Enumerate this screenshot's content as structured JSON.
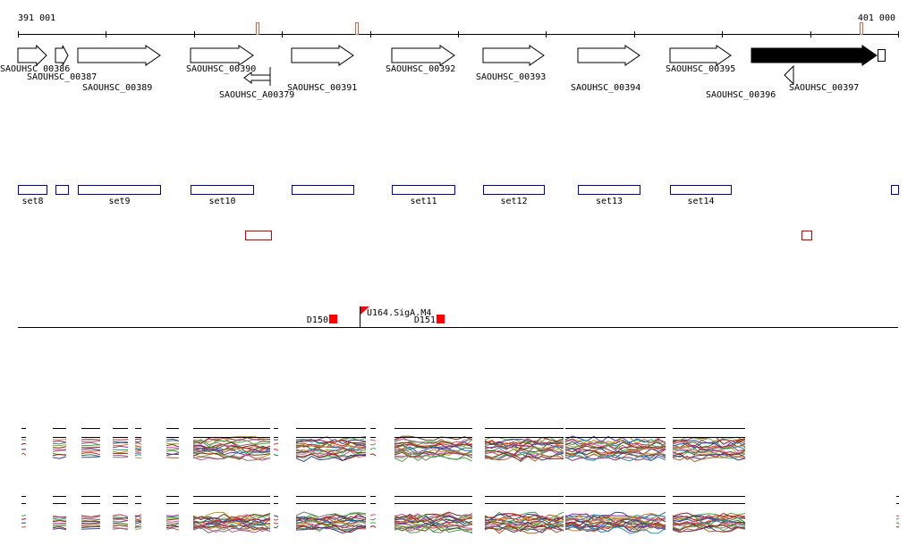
{
  "ruler": {
    "start_label": "391 001",
    "end_label": "401 000",
    "start": 391001,
    "end": 401000
  },
  "genes": [
    {
      "id": "SAOUHSC_00386",
      "dir": "+",
      "start": 391001,
      "end": 391330
    },
    {
      "id": "SAOUHSC_00387",
      "dir": "+",
      "start": 391430,
      "end": 391570
    },
    {
      "id": "SAOUHSC_00389",
      "dir": "+",
      "start": 391680,
      "end": 392620
    },
    {
      "id": "SAOUHSC_00390",
      "dir": "+",
      "start": 392960,
      "end": 393670
    },
    {
      "id": "SAOUHSC_A00379",
      "dir": "-",
      "start": 393570,
      "end": 393870
    },
    {
      "id": "SAOUHSC_00391",
      "dir": "+",
      "start": 394110,
      "end": 394810
    },
    {
      "id": "SAOUHSC_00392",
      "dir": "+",
      "start": 395250,
      "end": 395960
    },
    {
      "id": "SAOUHSC_00393",
      "dir": "+",
      "start": 396280,
      "end": 396980
    },
    {
      "id": "SAOUHSC_00394",
      "dir": "+",
      "start": 397360,
      "end": 398060
    },
    {
      "id": "SAOUHSC_00395",
      "dir": "+",
      "start": 398410,
      "end": 399100
    },
    {
      "id": "SAOUHSC_00396",
      "dir": "-",
      "start": 399710,
      "end": 399810
    },
    {
      "id": "SAOUHSC_00397",
      "dir": "+",
      "start": 399330,
      "end": 400760,
      "highlight": true
    }
  ],
  "gene_sets": [
    {
      "label": "set8",
      "start": 391001,
      "end": 391330
    },
    {
      "label": "",
      "start": 391430,
      "end": 391570
    },
    {
      "label": "set9",
      "start": 391680,
      "end": 392620
    },
    {
      "label": "set10",
      "start": 392960,
      "end": 393670
    },
    {
      "label": "",
      "start": 394110,
      "end": 394810
    },
    {
      "label": "set11",
      "start": 395250,
      "end": 395960
    },
    {
      "label": "set12",
      "start": 396280,
      "end": 396980
    },
    {
      "label": "set13",
      "start": 397360,
      "end": 398060
    },
    {
      "label": "set14",
      "start": 398410,
      "end": 399100
    },
    {
      "label": "",
      "start": 400920,
      "end": 401000
    }
  ],
  "extra_features": [
    {
      "start": 393580,
      "end": 393880
    },
    {
      "start": 399900,
      "end": 400010
    }
  ],
  "ruler_marks": [
    393720,
    394850,
    400580
  ],
  "probes": [
    {
      "label": "D150",
      "pos": 394580
    },
    {
      "label": "U164.SigA.M4",
      "pos": 394880,
      "flag": true
    },
    {
      "label": "D151",
      "pos": 395800
    }
  ],
  "colors": {
    "outline": "#0000aa",
    "extra": "#cc0000",
    "ruler_mark": "#cc6644",
    "probe": "#ff0000",
    "highlight_gene": "#000000"
  }
}
